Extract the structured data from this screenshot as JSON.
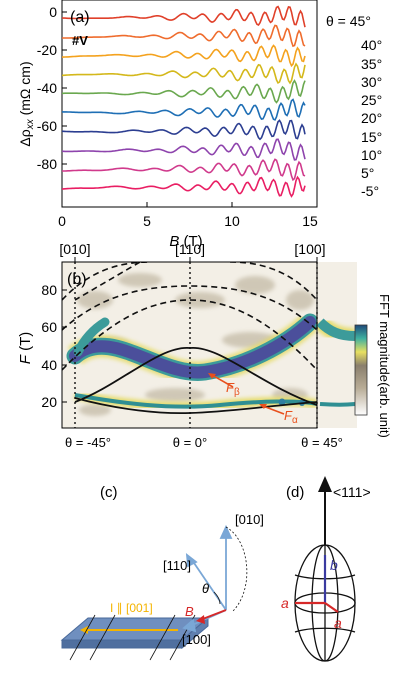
{
  "panel_a": {
    "label": "(a)",
    "sample": "#V",
    "ylabel_main": "Δρ",
    "ylabel_sub": "xx",
    "ylabel_unit": " (mΩ cm)",
    "xlabel_main": "B",
    "xlabel_unit": " (T)",
    "y_ticks": [
      "0",
      "-20",
      "-40",
      "-60",
      "-80"
    ],
    "x_ticks": [
      "0",
      "5",
      "10",
      "15"
    ],
    "theta_prefix": "θ = ",
    "angle_labels": [
      "45°",
      "40°",
      "35°",
      "30°",
      "25°",
      "20°",
      "15°",
      "10°",
      "5°",
      "-5°"
    ],
    "curve_colors": [
      "#e0402a",
      "#ef6c2d",
      "#f4a21e",
      "#d4b81b",
      "#6aa84f",
      "#1f6fb5",
      "#2c3e91",
      "#8e44ad",
      "#d03a8c",
      "#e91e63"
    ]
  },
  "panel_b": {
    "label": "(b)",
    "dir_labels": [
      "[010]",
      "[110]",
      "[100]"
    ],
    "ylabel_main": "F",
    "ylabel_unit": " (T)",
    "y_ticks": [
      "20",
      "40",
      "60",
      "80"
    ],
    "x_ticks": [
      "θ = -45°",
      "θ = 0°",
      "θ = 45°"
    ],
    "colorbar_title": "FFT magnitude",
    "colorbar_sub": "(arb. unit)",
    "f_beta_main": "F",
    "f_beta_sub": "β",
    "f_alpha_main": "F",
    "f_alpha_sub": "α",
    "accent": "#e8501d"
  },
  "panel_c": {
    "label": "(c)",
    "current_label": "I ∥ [001]",
    "dir_010": "[010]",
    "dir_110": "[110]",
    "dir_100": "[100]",
    "field_label": "B",
    "angle_label": "θ",
    "current_color": "#f4b400",
    "field_color": "#d62828",
    "axis_color": "#7aa7d6"
  },
  "panel_d": {
    "label": "(d)",
    "axis_label": "<111>",
    "a_label": "a",
    "b_label": "b"
  }
}
